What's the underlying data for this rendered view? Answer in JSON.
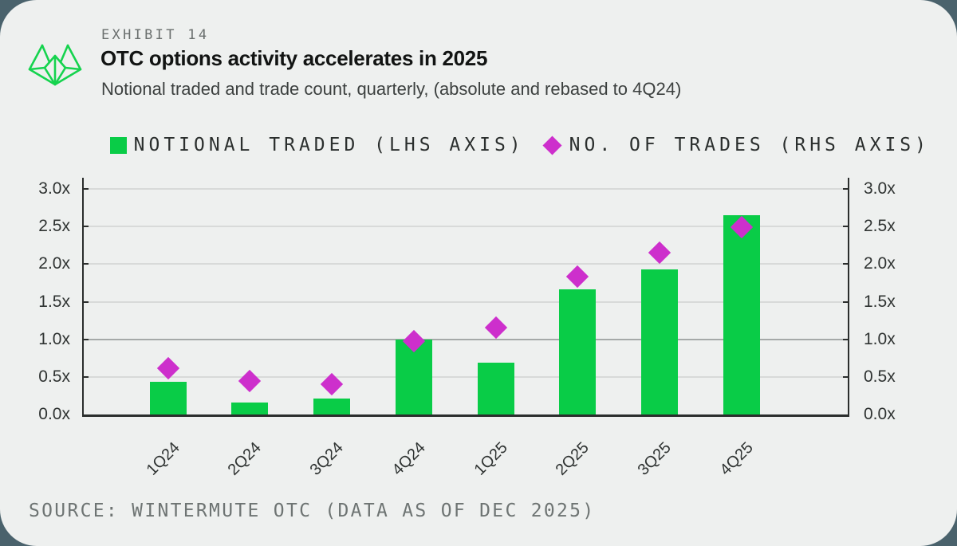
{
  "page": {
    "outer_background": "#4A626C",
    "card_background": "#EEF0EF"
  },
  "header": {
    "logo": "wintermute-logo",
    "logo_color": "#15D34E",
    "exhibit_label": "EXHIBIT 14",
    "title": "OTC options activity accelerates in 2025",
    "subtitle": "Notional traded and trade count, quarterly, (absolute and rebased to 4Q24)"
  },
  "legend": [
    {
      "marker": "square",
      "color": "#09CC47",
      "label": "NOTIONAL TRADED (LHS AXIS)"
    },
    {
      "marker": "diamond",
      "color": "#CD2FCC",
      "label": "NO. OF TRADES (RHS AXIS)"
    }
  ],
  "chart_data": {
    "type": "bar",
    "title": "OTC options activity accelerates in 2025",
    "subtitle": "Notional traded and trade count, quarterly, (absolute and rebased to 4Q24)",
    "categories": [
      "1Q24",
      "2Q24",
      "3Q24",
      "4Q24",
      "1Q25",
      "2Q25",
      "3Q25",
      "4Q25"
    ],
    "series": [
      {
        "name": "Notional traded (LHS axis)",
        "type": "bar",
        "axis": "left",
        "color": "#09CC47",
        "values": [
          0.44,
          0.16,
          0.21,
          1.0,
          0.69,
          1.66,
          1.93,
          2.65
        ]
      },
      {
        "name": "No. of trades (RHS axis)",
        "type": "scatter-diamond",
        "axis": "right",
        "color": "#CD2FCC",
        "values": [
          0.62,
          0.45,
          0.4,
          0.97,
          1.16,
          1.83,
          2.15,
          2.49
        ]
      }
    ],
    "y_ticks": [
      "3.0x",
      "2.5x",
      "2.0x",
      "1.5x",
      "1.0x",
      "0.5x",
      "0.0x"
    ],
    "ylim": [
      0,
      3.0
    ],
    "baseline_value": 1.0,
    "grid": true,
    "legend_position": "top-right"
  },
  "source": "SOURCE: WINTERMUTE OTC (DATA AS OF DEC 2025)"
}
